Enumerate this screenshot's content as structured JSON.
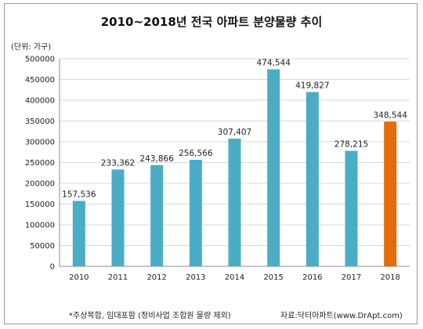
{
  "chart_data": {
    "type": "bar",
    "title": "2010~2018년 전국 아파트 분양물량 추이",
    "unit": "(단위: 가구)",
    "categories": [
      "2010",
      "2011",
      "2012",
      "2013",
      "2014",
      "2015",
      "2016",
      "2017",
      "2018"
    ],
    "values": [
      157536,
      233362,
      243866,
      256566,
      307407,
      474544,
      419827,
      278215,
      348544
    ],
    "value_labels": [
      "157,536",
      "233,362",
      "243,866",
      "256,566",
      "307,407",
      "474,544",
      "419,827",
      "278,215",
      "348,544"
    ],
    "ylim": [
      0,
      500000
    ],
    "yticks": [
      0,
      50000,
      100000,
      150000,
      200000,
      250000,
      300000,
      350000,
      400000,
      450000,
      500000
    ],
    "ytick_labels": [
      "0",
      "50000",
      "100000",
      "150000",
      "200000",
      "250000",
      "300000",
      "350000",
      "400000",
      "450000",
      "500000"
    ],
    "grid": true,
    "legend": "none",
    "colors": {
      "bar": "#4bacc6",
      "highlight": "#e46c0a",
      "grid": "#d9d9d9"
    },
    "highlight_index": 8,
    "footnote": "*주상복합, 임대포함 (정비사업 조합원 물량 제외)",
    "source": "자료:닥터아파트(www.DrApt.com)"
  }
}
